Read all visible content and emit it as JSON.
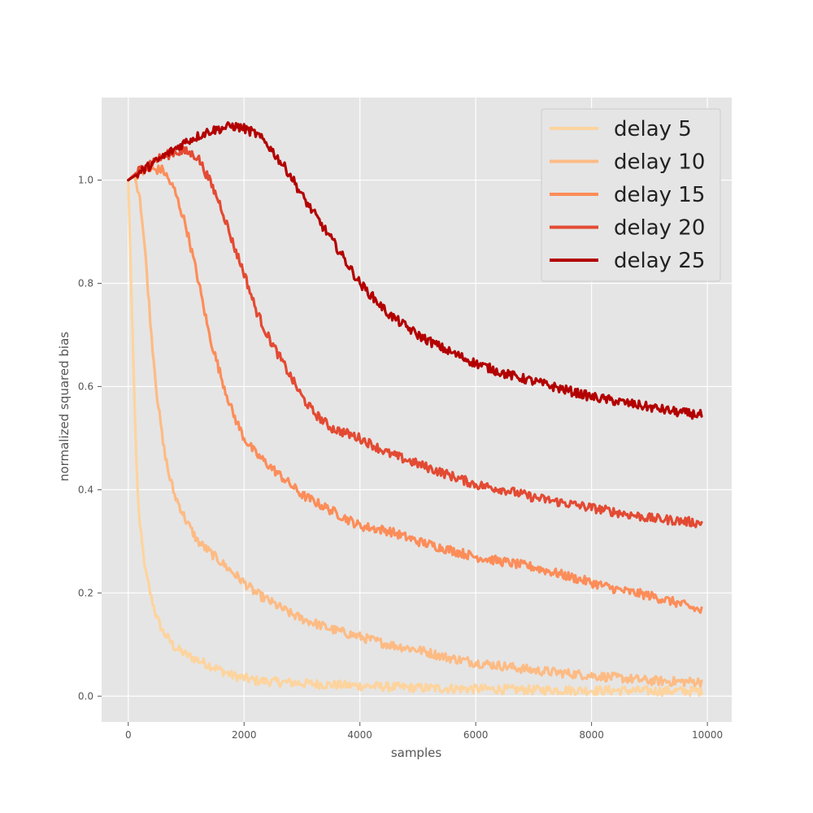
{
  "chart_data": {
    "type": "line",
    "title": "",
    "xlabel": "samples",
    "ylabel": "normalized squared bias",
    "xlim": [
      -460,
      10420
    ],
    "ylim": [
      -0.05,
      1.16
    ],
    "xticks": [
      0,
      2000,
      4000,
      6000,
      8000,
      10000
    ],
    "yticks": [
      0.0,
      0.2,
      0.4,
      0.6,
      0.8,
      1.0
    ],
    "xtick_labels": [
      "0",
      "2000",
      "4000",
      "6000",
      "8000",
      "10000"
    ],
    "ytick_labels": [
      "0.0",
      "0.2",
      "0.4",
      "0.6",
      "0.8",
      "1.0"
    ],
    "grid": true,
    "legend_position": "top-right",
    "series": [
      {
        "name": "delay 5",
        "color": "#fdd49e",
        "x": [
          0,
          50,
          100,
          150,
          200,
          300,
          400,
          500,
          600,
          700,
          800,
          1000,
          1200,
          1400,
          1600,
          1800,
          2000,
          2200,
          2500,
          3000,
          3500,
          4000,
          4500,
          5000,
          5500,
          6000,
          6500,
          7000,
          7500,
          8000,
          8500,
          9000,
          9500,
          9900
        ],
        "y": [
          1.0,
          0.8,
          0.6,
          0.42,
          0.33,
          0.24,
          0.19,
          0.15,
          0.125,
          0.11,
          0.095,
          0.08,
          0.07,
          0.06,
          0.05,
          0.04,
          0.035,
          0.03,
          0.028,
          0.025,
          0.022,
          0.02,
          0.018,
          0.016,
          0.015,
          0.014,
          0.013,
          0.012,
          0.012,
          0.011,
          0.011,
          0.01,
          0.01,
          0.01
        ]
      },
      {
        "name": "delay 10",
        "color": "#fdbb84",
        "x": [
          0,
          100,
          200,
          300,
          400,
          500,
          600,
          700,
          800,
          1000,
          1200,
          1400,
          1600,
          1800,
          2000,
          2200,
          2500,
          2800,
          3000,
          3500,
          4000,
          4500,
          5000,
          5500,
          6000,
          6500,
          7000,
          7500,
          8000,
          8500,
          9000,
          9500,
          9900
        ],
        "y": [
          1.0,
          1.01,
          0.97,
          0.85,
          0.7,
          0.58,
          0.49,
          0.43,
          0.39,
          0.34,
          0.3,
          0.28,
          0.26,
          0.24,
          0.22,
          0.2,
          0.18,
          0.16,
          0.15,
          0.13,
          0.115,
          0.1,
          0.09,
          0.075,
          0.065,
          0.058,
          0.05,
          0.045,
          0.04,
          0.035,
          0.03,
          0.028,
          0.028
        ]
      },
      {
        "name": "delay 15",
        "color": "#fc8d59",
        "x": [
          0,
          200,
          400,
          600,
          800,
          1000,
          1200,
          1400,
          1600,
          1800,
          2000,
          2200,
          2400,
          2600,
          2800,
          3000,
          3500,
          4000,
          4500,
          5000,
          5500,
          6000,
          6500,
          7000,
          7500,
          8000,
          8500,
          9000,
          9500,
          9900
        ],
        "y": [
          1.0,
          1.015,
          1.02,
          1.02,
          0.98,
          0.91,
          0.81,
          0.7,
          0.62,
          0.55,
          0.5,
          0.47,
          0.45,
          0.43,
          0.41,
          0.39,
          0.36,
          0.33,
          0.32,
          0.3,
          0.285,
          0.27,
          0.26,
          0.25,
          0.235,
          0.22,
          0.205,
          0.195,
          0.18,
          0.165
        ]
      },
      {
        "name": "delay 20",
        "color": "#e34a33",
        "x": [
          0,
          200,
          400,
          600,
          800,
          1000,
          1200,
          1400,
          1600,
          1800,
          2000,
          2200,
          2400,
          2600,
          2800,
          3000,
          3200,
          3500,
          4000,
          4500,
          5000,
          5500,
          6000,
          6500,
          7000,
          7500,
          8000,
          8500,
          9000,
          9500,
          9900
        ],
        "y": [
          1.0,
          1.02,
          1.035,
          1.045,
          1.055,
          1.055,
          1.045,
          1.0,
          0.95,
          0.88,
          0.82,
          0.75,
          0.7,
          0.66,
          0.62,
          0.58,
          0.55,
          0.52,
          0.5,
          0.47,
          0.45,
          0.43,
          0.41,
          0.4,
          0.385,
          0.375,
          0.365,
          0.355,
          0.345,
          0.34,
          0.335
        ]
      },
      {
        "name": "delay 25",
        "color": "#b30000",
        "x": [
          0,
          200,
          400,
          600,
          800,
          1000,
          1200,
          1400,
          1600,
          1800,
          2000,
          2200,
          2400,
          2600,
          2800,
          3000,
          3300,
          3600,
          4000,
          4500,
          5000,
          5500,
          6000,
          6500,
          7000,
          7500,
          8000,
          8500,
          9000,
          9500,
          9900
        ],
        "y": [
          1.0,
          1.015,
          1.03,
          1.045,
          1.06,
          1.075,
          1.085,
          1.095,
          1.1,
          1.105,
          1.1,
          1.09,
          1.07,
          1.04,
          1.01,
          0.97,
          0.92,
          0.87,
          0.8,
          0.74,
          0.7,
          0.67,
          0.645,
          0.625,
          0.61,
          0.595,
          0.58,
          0.57,
          0.56,
          0.55,
          0.545
        ]
      }
    ]
  }
}
